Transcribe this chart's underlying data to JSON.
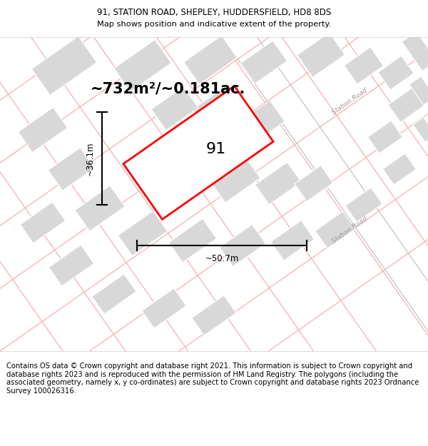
{
  "title_line1": "91, STATION ROAD, SHEPLEY, HUDDERSFIELD, HD8 8DS",
  "title_line2": "Map shows position and indicative extent of the property.",
  "area_label": "~732m²/~0.181ac.",
  "plot_number": "91",
  "dim_width": "~50.7m",
  "dim_height": "~36.1m",
  "road_label": "Station Road",
  "footer_text": "Contains OS data © Crown copyright and database right 2021. This information is subject to Crown copyright and database rights 2023 and is reproduced with the permission of HM Land Registry. The polygons (including the associated geometry, namely x, y co-ordinates) are subject to Crown copyright and database rights 2023 Ordnance Survey 100026316.",
  "bg_color": "#ffffff",
  "map_bg": "#ffffff",
  "plot_fill": "#ffffff",
  "plot_edge_color": "#ff0000",
  "building_fill": "#d8d8d8",
  "building_edge": "#ffffff",
  "road_line_color": "#f5b8b8",
  "road_outline_color": "#d4d4d4",
  "title_fontsize": 8.5,
  "footer_fontsize": 7.2,
  "area_fontsize": 15,
  "plot_label_fontsize": 16,
  "dim_fontsize": 8.5
}
